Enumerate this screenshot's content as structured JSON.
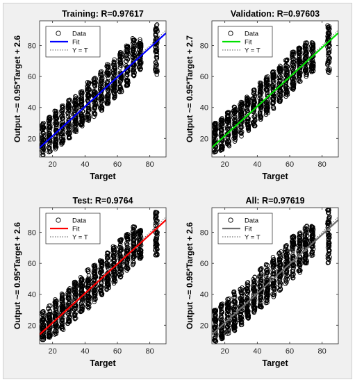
{
  "chart_data": [
    {
      "type": "scatter",
      "title": "Training: R=0.97617",
      "xlabel": "Target",
      "ylabel": "Output ~= 0.95*Target + 2.6",
      "xlim": [
        12,
        90
      ],
      "ylim": [
        8,
        96
      ],
      "xticks": [
        20,
        40,
        60,
        80
      ],
      "yticks": [
        20,
        40,
        60,
        80
      ],
      "fit": {
        "slope": 0.95,
        "intercept": 2.6,
        "color": "#0000ff"
      },
      "legend": {
        "position": "top-left",
        "entries": [
          "Data",
          "Fit",
          "Y = T"
        ]
      },
      "data_clusters": [
        {
          "x": 14,
          "y_min": 9,
          "y_max": 30
        },
        {
          "x": 18,
          "y_min": 11,
          "y_max": 34
        },
        {
          "x": 22,
          "y_min": 13,
          "y_max": 38
        },
        {
          "x": 26,
          "y_min": 16,
          "y_max": 42
        },
        {
          "x": 30,
          "y_min": 20,
          "y_max": 45
        },
        {
          "x": 34,
          "y_min": 24,
          "y_max": 48
        },
        {
          "x": 38,
          "y_min": 28,
          "y_max": 52
        },
        {
          "x": 42,
          "y_min": 31,
          "y_max": 57
        },
        {
          "x": 46,
          "y_min": 34,
          "y_max": 60
        },
        {
          "x": 50,
          "y_min": 38,
          "y_max": 64
        },
        {
          "x": 54,
          "y_min": 42,
          "y_max": 68
        },
        {
          "x": 58,
          "y_min": 46,
          "y_max": 72
        },
        {
          "x": 62,
          "y_min": 50,
          "y_max": 78
        },
        {
          "x": 66,
          "y_min": 54,
          "y_max": 80
        },
        {
          "x": 70,
          "y_min": 60,
          "y_max": 85
        },
        {
          "x": 74,
          "y_min": 64,
          "y_max": 84
        },
        {
          "x": 84,
          "y_min": 60,
          "y_max": 95
        }
      ]
    },
    {
      "type": "scatter",
      "title": "Validation: R=0.97603",
      "xlabel": "Target",
      "ylabel": "Output ~= 0.95*Target + 2.7",
      "xlim": [
        12,
        90
      ],
      "ylim": [
        8,
        96
      ],
      "xticks": [
        20,
        40,
        60,
        80
      ],
      "yticks": [
        20,
        40,
        60,
        80
      ],
      "fit": {
        "slope": 0.95,
        "intercept": 2.7,
        "color": "#00e000"
      },
      "legend": {
        "position": "top-left",
        "entries": [
          "Data",
          "Fit",
          "Y = T"
        ]
      },
      "data_clusters": [
        {
          "x": 14,
          "y_min": 11,
          "y_max": 30
        },
        {
          "x": 18,
          "y_min": 12,
          "y_max": 33
        },
        {
          "x": 22,
          "y_min": 15,
          "y_max": 37
        },
        {
          "x": 26,
          "y_min": 18,
          "y_max": 41
        },
        {
          "x": 30,
          "y_min": 21,
          "y_max": 44
        },
        {
          "x": 34,
          "y_min": 25,
          "y_max": 47
        },
        {
          "x": 38,
          "y_min": 28,
          "y_max": 52
        },
        {
          "x": 42,
          "y_min": 32,
          "y_max": 56
        },
        {
          "x": 46,
          "y_min": 35,
          "y_max": 60
        },
        {
          "x": 50,
          "y_min": 39,
          "y_max": 64
        },
        {
          "x": 54,
          "y_min": 43,
          "y_max": 67
        },
        {
          "x": 58,
          "y_min": 47,
          "y_max": 71
        },
        {
          "x": 62,
          "y_min": 51,
          "y_max": 76
        },
        {
          "x": 66,
          "y_min": 56,
          "y_max": 79
        },
        {
          "x": 70,
          "y_min": 60,
          "y_max": 83
        },
        {
          "x": 74,
          "y_min": 63,
          "y_max": 82
        },
        {
          "x": 84,
          "y_min": 62,
          "y_max": 94
        }
      ]
    },
    {
      "type": "scatter",
      "title": "Test: R=0.9764",
      "xlabel": "Target",
      "ylabel": "Output ~= 0.95*Target + 2.6",
      "xlim": [
        12,
        90
      ],
      "ylim": [
        8,
        96
      ],
      "xticks": [
        20,
        40,
        60,
        80
      ],
      "yticks": [
        20,
        40,
        60,
        80
      ],
      "fit": {
        "slope": 0.95,
        "intercept": 2.6,
        "color": "#ff0000"
      },
      "legend": {
        "position": "top-left",
        "entries": [
          "Data",
          "Fit",
          "Y = T"
        ]
      },
      "data_clusters": [
        {
          "x": 14,
          "y_min": 10,
          "y_max": 29
        },
        {
          "x": 18,
          "y_min": 12,
          "y_max": 33
        },
        {
          "x": 22,
          "y_min": 14,
          "y_max": 37
        },
        {
          "x": 26,
          "y_min": 17,
          "y_max": 41
        },
        {
          "x": 30,
          "y_min": 21,
          "y_max": 44
        },
        {
          "x": 34,
          "y_min": 24,
          "y_max": 48
        },
        {
          "x": 38,
          "y_min": 28,
          "y_max": 51
        },
        {
          "x": 42,
          "y_min": 31,
          "y_max": 56
        },
        {
          "x": 46,
          "y_min": 35,
          "y_max": 59
        },
        {
          "x": 50,
          "y_min": 39,
          "y_max": 63
        },
        {
          "x": 54,
          "y_min": 43,
          "y_max": 67
        },
        {
          "x": 58,
          "y_min": 47,
          "y_max": 71
        },
        {
          "x": 62,
          "y_min": 50,
          "y_max": 76
        },
        {
          "x": 66,
          "y_min": 55,
          "y_max": 79
        },
        {
          "x": 70,
          "y_min": 59,
          "y_max": 84
        },
        {
          "x": 74,
          "y_min": 63,
          "y_max": 82
        },
        {
          "x": 84,
          "y_min": 65,
          "y_max": 94
        }
      ]
    },
    {
      "type": "scatter",
      "title": "All: R=0.97619",
      "xlabel": "Target",
      "ylabel": "Output ~= 0.95*Target + 2.6",
      "xlim": [
        12,
        90
      ],
      "ylim": [
        8,
        96
      ],
      "xticks": [
        20,
        40,
        60,
        80
      ],
      "yticks": [
        20,
        40,
        60,
        80
      ],
      "fit": {
        "slope": 0.95,
        "intercept": 2.6,
        "color": "#6e6e6e"
      },
      "legend": {
        "position": "top-left",
        "entries": [
          "Data",
          "Fit",
          "Y = T"
        ]
      },
      "data_clusters": [
        {
          "x": 14,
          "y_min": 9,
          "y_max": 30
        },
        {
          "x": 18,
          "y_min": 11,
          "y_max": 34
        },
        {
          "x": 22,
          "y_min": 13,
          "y_max": 38
        },
        {
          "x": 26,
          "y_min": 16,
          "y_max": 42
        },
        {
          "x": 30,
          "y_min": 20,
          "y_max": 45
        },
        {
          "x": 34,
          "y_min": 24,
          "y_max": 48
        },
        {
          "x": 38,
          "y_min": 28,
          "y_max": 52
        },
        {
          "x": 42,
          "y_min": 31,
          "y_max": 57
        },
        {
          "x": 46,
          "y_min": 34,
          "y_max": 60
        },
        {
          "x": 50,
          "y_min": 38,
          "y_max": 64
        },
        {
          "x": 54,
          "y_min": 42,
          "y_max": 68
        },
        {
          "x": 58,
          "y_min": 46,
          "y_max": 72
        },
        {
          "x": 62,
          "y_min": 50,
          "y_max": 78
        },
        {
          "x": 66,
          "y_min": 54,
          "y_max": 80
        },
        {
          "x": 70,
          "y_min": 60,
          "y_max": 85
        },
        {
          "x": 74,
          "y_min": 64,
          "y_max": 84
        },
        {
          "x": 84,
          "y_min": 60,
          "y_max": 95
        }
      ]
    }
  ]
}
